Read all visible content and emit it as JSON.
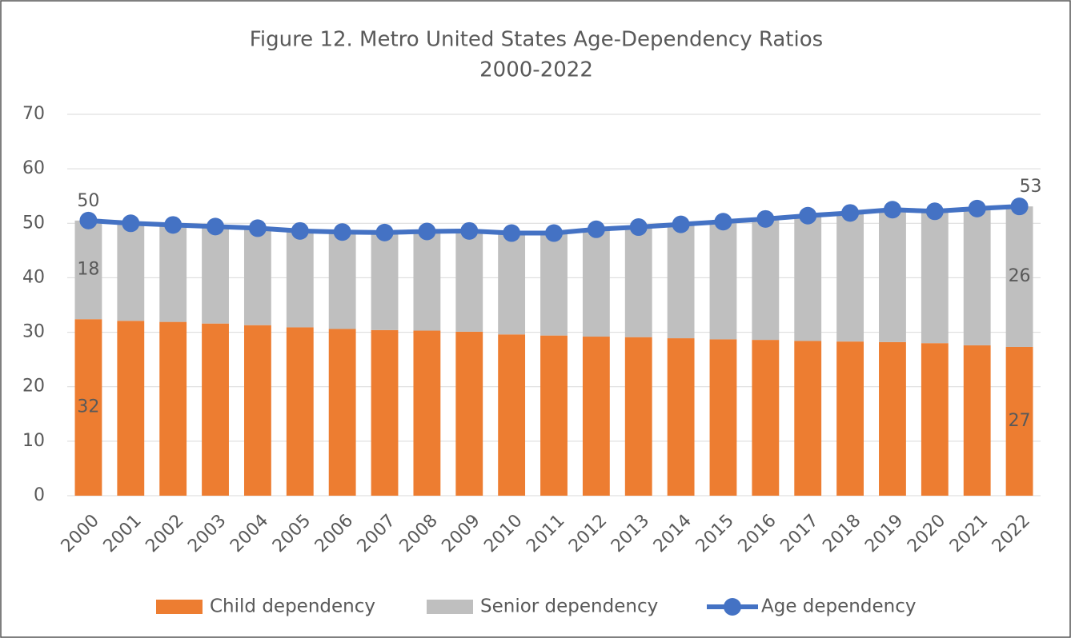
{
  "chart_data": {
    "type": "bar",
    "title": "Figure 12. Metro United States Age-Dependency Ratios",
    "subtitle": "2000-2022",
    "stacked": true,
    "categories": [
      "2000",
      "2001",
      "2002",
      "2003",
      "2004",
      "2005",
      "2006",
      "2007",
      "2008",
      "2009",
      "2010",
      "2011",
      "2012",
      "2013",
      "2014",
      "2015",
      "2016",
      "2017",
      "2018",
      "2019",
      "2020",
      "2021",
      "2022"
    ],
    "series": [
      {
        "name": "Child dependency",
        "type": "bar",
        "color": "#ed7d31",
        "values": [
          32.4,
          32.1,
          31.9,
          31.6,
          31.3,
          30.9,
          30.6,
          30.4,
          30.3,
          30.1,
          29.6,
          29.4,
          29.2,
          29.1,
          28.9,
          28.7,
          28.6,
          28.4,
          28.3,
          28.2,
          28.0,
          27.6,
          27.3
        ],
        "value_labels": [
          "32",
          null,
          null,
          null,
          null,
          null,
          null,
          null,
          null,
          null,
          null,
          null,
          null,
          null,
          null,
          null,
          null,
          null,
          null,
          null,
          null,
          null,
          "27"
        ]
      },
      {
        "name": "Senior dependency",
        "type": "bar",
        "color": "#bfbfbf",
        "values": [
          18.1,
          17.9,
          17.8,
          17.8,
          17.8,
          17.7,
          17.8,
          17.9,
          18.2,
          18.5,
          18.6,
          18.8,
          19.7,
          20.2,
          20.9,
          21.6,
          22.2,
          23.0,
          23.6,
          24.3,
          24.2,
          25.1,
          25.8
        ],
        "value_labels": [
          "18",
          null,
          null,
          null,
          null,
          null,
          null,
          null,
          null,
          null,
          null,
          null,
          null,
          null,
          null,
          null,
          null,
          null,
          null,
          null,
          null,
          null,
          "26"
        ]
      },
      {
        "name": "Age dependency",
        "type": "line",
        "color": "#4472c4",
        "values": [
          50.5,
          50.0,
          49.7,
          49.4,
          49.1,
          48.6,
          48.4,
          48.3,
          48.5,
          48.6,
          48.2,
          48.2,
          48.9,
          49.3,
          49.8,
          50.3,
          50.8,
          51.4,
          51.9,
          52.5,
          52.2,
          52.7,
          53.1
        ],
        "value_labels": [
          "50",
          null,
          null,
          null,
          null,
          null,
          null,
          null,
          null,
          null,
          null,
          null,
          null,
          null,
          null,
          null,
          null,
          null,
          null,
          null,
          null,
          null,
          "53"
        ]
      }
    ],
    "ylim": [
      0,
      70
    ],
    "yticks": [
      0,
      10,
      20,
      30,
      40,
      50,
      60,
      70
    ],
    "grid": true,
    "legend": "bottom"
  }
}
